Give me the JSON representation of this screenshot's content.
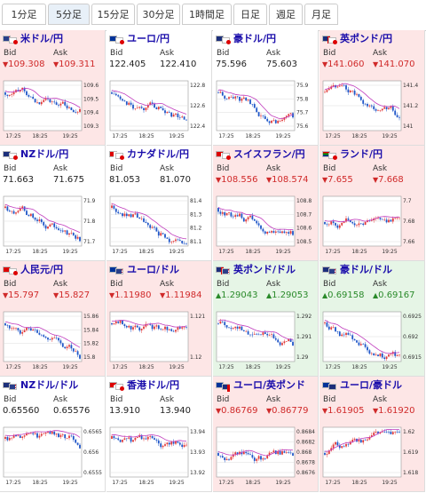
{
  "tabs": [
    "1分足",
    "5分足",
    "15分足",
    "30分足",
    "1時間足",
    "日足",
    "週足",
    "月足"
  ],
  "active_tab": 1,
  "cells": [
    {
      "name": "米ドル/円",
      "flags": [
        "us",
        "jp"
      ],
      "state": "down",
      "bid": "109.308",
      "ask": "109.311",
      "arrow": "▼",
      "yticks": [
        "109.6",
        "109.5",
        "109.4",
        "109.3"
      ],
      "xticks": [
        "17:25",
        "18:25",
        "19:25"
      ],
      "trend": "down"
    },
    {
      "name": "ユーロ/円",
      "flags": [
        "eu",
        "jp"
      ],
      "state": "neutral",
      "bid": "122.405",
      "ask": "122.410",
      "arrow": "",
      "yticks": [
        "122.8",
        "122.6",
        "122.4"
      ],
      "xticks": [
        "17:25",
        "18:25",
        "19:25"
      ],
      "trend": "down"
    },
    {
      "name": "豪ドル/円",
      "flags": [
        "au",
        "jp"
      ],
      "state": "neutral",
      "bid": "75.596",
      "ask": "75.603",
      "arrow": "",
      "yticks": [
        "75.9",
        "75.8",
        "75.7",
        "75.6"
      ],
      "xticks": [
        "17:25",
        "18:25",
        "19:25"
      ],
      "trend": "down"
    },
    {
      "name": "英ポンド/円",
      "flags": [
        "gb",
        "jp"
      ],
      "state": "down",
      "bid": "141.060",
      "ask": "141.070",
      "arrow": "▼",
      "yticks": [
        "141.4",
        "141.2",
        "141"
      ],
      "xticks": [
        "17:25",
        "18:25",
        "19:25"
      ],
      "trend": "down"
    },
    {
      "name": "NZドル/円",
      "flags": [
        "nz",
        "jp"
      ],
      "state": "neutral",
      "bid": "71.663",
      "ask": "71.675",
      "arrow": "",
      "yticks": [
        "71.9",
        "71.8",
        "71.7"
      ],
      "xticks": [
        "17:25",
        "18:25",
        "19:25"
      ],
      "trend": "down"
    },
    {
      "name": "カナダドル/円",
      "flags": [
        "ca",
        "jp"
      ],
      "state": "neutral",
      "bid": "81.053",
      "ask": "81.070",
      "arrow": "",
      "yticks": [
        "81.4",
        "81.3",
        "81.2",
        "81.1"
      ],
      "xticks": [
        "17:25",
        "18:25",
        "19:25"
      ],
      "trend": "down"
    },
    {
      "name": "スイスフラン/円",
      "flags": [
        "ch",
        "jp"
      ],
      "state": "down",
      "bid": "108.556",
      "ask": "108.574",
      "arrow": "▼",
      "yticks": [
        "108.8",
        "108.7",
        "108.6",
        "108.5"
      ],
      "xticks": [
        "17:25",
        "18:25",
        "19:25"
      ],
      "trend": "down"
    },
    {
      "name": "ランド/円",
      "flags": [
        "za",
        "jp"
      ],
      "state": "down",
      "bid": "7.655",
      "ask": "7.668",
      "arrow": "▼",
      "yticks": [
        "7.7",
        "7.68",
        "7.66"
      ],
      "xticks": [
        "17:25",
        "18:25",
        "19:25"
      ],
      "trend": "flat"
    },
    {
      "name": "人民元/円",
      "flags": [
        "cn",
        "jp"
      ],
      "state": "down",
      "bid": "15.797",
      "ask": "15.827",
      "arrow": "▼",
      "yticks": [
        "15.86",
        "15.84",
        "15.82",
        "15.8"
      ],
      "xticks": [
        "17:25",
        "18:25",
        "19:25"
      ],
      "trend": "down"
    },
    {
      "name": "ユーロ/ドル",
      "flags": [
        "eu",
        "us"
      ],
      "state": "down",
      "bid": "1.11980",
      "ask": "1.11984",
      "arrow": "▼",
      "yticks": [
        "1.121",
        "1.12"
      ],
      "xticks": [
        "17:25",
        "18:25",
        "19:25"
      ],
      "trend": "down"
    },
    {
      "name": "英ポンド/ドル",
      "flags": [
        "gb",
        "us"
      ],
      "state": "up",
      "bid": "1.29043",
      "ask": "1.29053",
      "arrow": "▲",
      "yticks": [
        "1.292",
        "1.291",
        "1.29"
      ],
      "xticks": [
        "17:25",
        "18:25",
        "19:25"
      ],
      "trend": "down"
    },
    {
      "name": "豪ドル/ドル",
      "flags": [
        "au",
        "us"
      ],
      "state": "up",
      "bid": "0.69158",
      "ask": "0.69167",
      "arrow": "▲",
      "yticks": [
        "0.6925",
        "0.692",
        "0.6915"
      ],
      "xticks": [
        "17:25",
        "18:25",
        "19:25"
      ],
      "trend": "down"
    },
    {
      "name": "NZドル/ドル",
      "flags": [
        "nz",
        "us"
      ],
      "state": "neutral",
      "bid": "0.65560",
      "ask": "0.65576",
      "arrow": "",
      "yticks": [
        "0.6565",
        "0.656",
        "0.6555"
      ],
      "xticks": [
        "17:25",
        "18:25",
        "19:25"
      ],
      "trend": "down"
    },
    {
      "name": "香港ドル/円",
      "flags": [
        "hk",
        "jp"
      ],
      "state": "neutral",
      "bid": "13.910",
      "ask": "13.940",
      "arrow": "",
      "yticks": [
        "13.94",
        "13.93",
        "13.92"
      ],
      "xticks": [
        "17:25",
        "18:25",
        "19:25"
      ],
      "trend": "down"
    },
    {
      "name": "ユーロ/英ポンド",
      "flags": [
        "eu",
        "gb"
      ],
      "state": "down",
      "bid": "0.86769",
      "ask": "0.86779",
      "arrow": "▼",
      "yticks": [
        "0.8684",
        "0.8682",
        "0.868",
        "0.8678",
        "0.8676"
      ],
      "xticks": [
        "17:25",
        "18:25",
        "19:25"
      ],
      "trend": "flat"
    },
    {
      "name": "ユーロ/豪ドル",
      "flags": [
        "eu",
        "au"
      ],
      "state": "down",
      "bid": "1.61905",
      "ask": "1.61920",
      "arrow": "▼",
      "yticks": [
        "1.62",
        "1.619",
        "1.618"
      ],
      "xticks": [
        "17:25",
        "18:25",
        "19:25"
      ],
      "trend": "flat"
    }
  ],
  "labels": {
    "bid": "Bid",
    "ask": "Ask"
  },
  "colors": {
    "down_bg": "#fde6e6",
    "up_bg": "#e6f5e6",
    "down_text": "#d02a2a",
    "up_text": "#2a8a2a",
    "candle_up": "#e23a3a",
    "candle_down": "#1f56c8",
    "ma_line": "#c03bbd"
  }
}
